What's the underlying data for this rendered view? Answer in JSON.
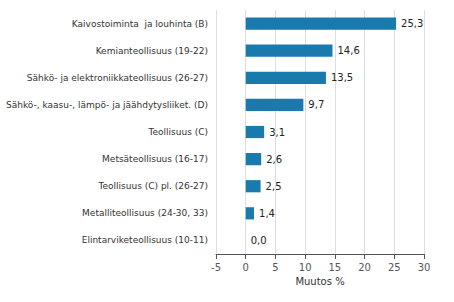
{
  "chart_data": {
    "type": "bar",
    "orientation": "horizontal",
    "categories": [
      "Elintarviketeollisuus (10-11)",
      "Metalliteollisuus (24-30, 33)",
      "Teollisuus (C) pl. (26-27)",
      "Metsäteollisuus (16-17)",
      "Teollisuus (C)",
      "Sähkö-, kaasu-, lämpö- ja jäähdytysliiket. (D)",
      "Sähkö- ja elektroniikkateollisuus (26-27)",
      "Kemianteollisuus (19-22)",
      "Kaivostoiminta  ja louhinta (B)"
    ],
    "values": [
      0.0,
      1.4,
      2.5,
      2.6,
      3.1,
      9.7,
      13.5,
      14.6,
      25.3
    ],
    "value_labels": [
      "0,0",
      "1,4",
      "2,5",
      "2,6",
      "3,1",
      "9,7",
      "13,5",
      "14,6",
      "25,3"
    ],
    "data_labels": true,
    "color": "#1a7aad",
    "xlabel": "Muutos %",
    "xlim": [
      -5,
      30
    ],
    "xticks": [
      -5,
      0,
      5,
      10,
      15,
      20,
      25,
      30
    ],
    "grid": true
  }
}
